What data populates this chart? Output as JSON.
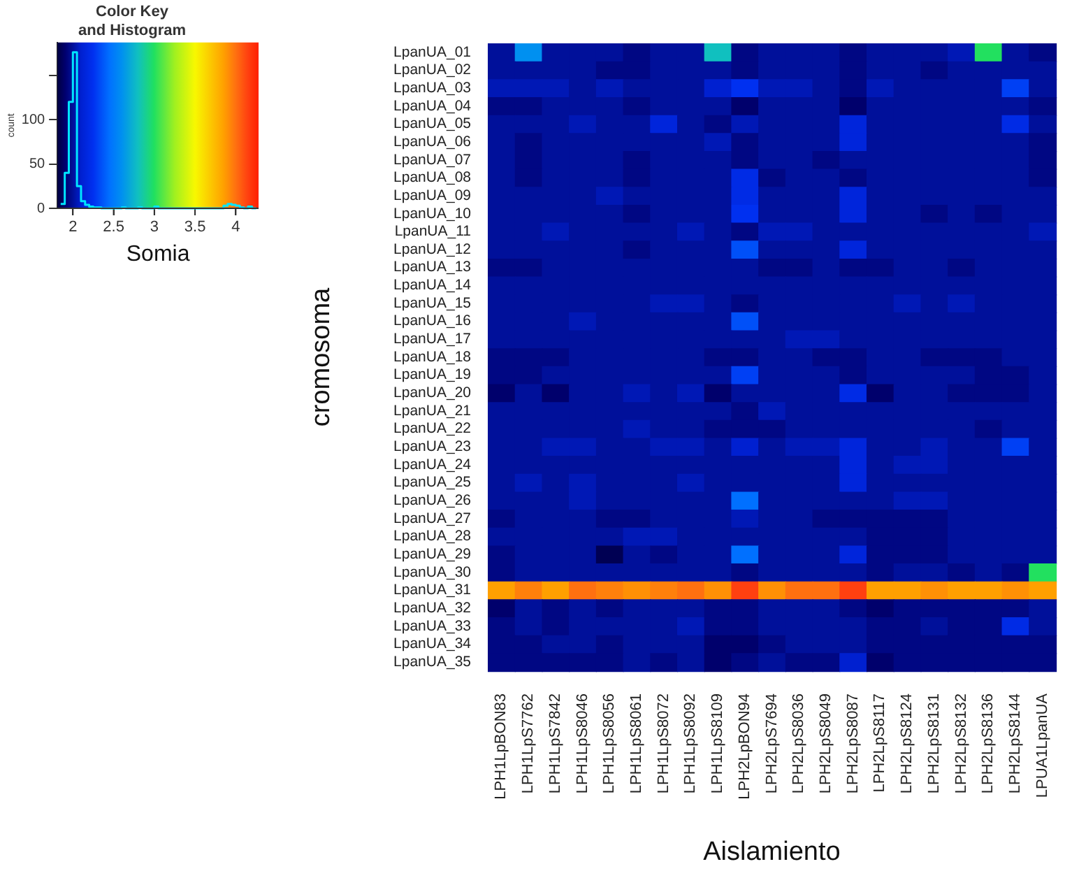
{
  "chart_data": [
    {
      "type": "histogram",
      "title": "Color Key\nand Histogram",
      "ylabel": "count",
      "color": "#00e5ff",
      "tick_labels": "y",
      "bins": [
        1.85,
        1.9,
        1.95,
        2.0,
        2.05,
        2.1,
        2.15,
        2.2,
        2.25,
        2.3,
        2.35,
        2.4,
        2.45,
        2.5,
        2.55,
        2.6,
        2.65,
        2.7,
        2.75,
        2.8,
        2.85,
        2.9,
        2.95,
        3.0,
        3.05,
        3.1,
        3.15,
        3.2,
        3.25,
        3.3,
        3.35,
        3.4,
        3.45,
        3.5,
        3.55,
        3.6,
        3.65,
        3.7,
        3.75,
        3.8,
        3.85,
        3.9,
        3.95,
        4.0,
        4.05,
        4.1,
        4.15,
        4.2,
        4.25
      ],
      "values": [
        5,
        40,
        120,
        176,
        25,
        8,
        4,
        2,
        1,
        1,
        0,
        0,
        0,
        0,
        0,
        1,
        0,
        0,
        0,
        1,
        0,
        0,
        0,
        2,
        0,
        0,
        0,
        0,
        0,
        0,
        0,
        0,
        0,
        0,
        0,
        0,
        0,
        0,
        0,
        0,
        3,
        5,
        4,
        3,
        1,
        0,
        2,
        0
      ],
      "xlim": [
        1.81,
        4.28
      ],
      "xticks": [
        2,
        2.5,
        3,
        3.5,
        4
      ],
      "ylim": [
        0,
        187
      ],
      "yticks": [
        0,
        50,
        100,
        {
          "value": 150,
          "label": null
        }
      ]
    },
    {
      "type": "heatmap",
      "xlabel": "Aislamiento",
      "ylabel": "cromosoma",
      "clabel": "Somia",
      "clim": [
        1.81,
        4.28
      ],
      "cticks": [
        2,
        2.5,
        3,
        3.5,
        4
      ],
      "categories": [
        "LPH1LpBON83",
        "LPH1LpS7762",
        "LPH1LpS7842",
        "LPH1LpS8046",
        "LPH1LpS8056",
        "LPH1LpS8061",
        "LPH1LpS8072",
        "LPH1LpS8092",
        "LPH1LpS8109",
        "LPH2LpBON94",
        "LPH2LpS7694",
        "LPH2LpS8036",
        "LPH2LpS8049",
        "LPH2LpS8087",
        "LPH2LpS8117",
        "LPH2LpS8124",
        "LPH2LpS8131",
        "LPH2LpS8132",
        "LPH2LpS8136",
        "LPH2LpS8144",
        "LPUA1LpanUA"
      ],
      "y_categories": [
        "LpanUA_01",
        "LpanUA_02",
        "LpanUA_03",
        "LpanUA_04",
        "LpanUA_05",
        "LpanUA_06",
        "LpanUA_07",
        "LpanUA_08",
        "LpanUA_09",
        "LpanUA_10",
        "LpanUA_11",
        "LpanUA_12",
        "LpanUA_13",
        "LpanUA_14",
        "LpanUA_15",
        "LpanUA_16",
        "LpanUA_17",
        "LpanUA_18",
        "LpanUA_19",
        "LpanUA_20",
        "LpanUA_21",
        "LpanUA_22",
        "LpanUA_23",
        "LpanUA_24",
        "LpanUA_25",
        "LpanUA_26",
        "LpanUA_27",
        "LpanUA_28",
        "LpanUA_29",
        "LpanUA_30",
        "LpanUA_31",
        "LpanUA_32",
        "LpanUA_33",
        "LpanUA_34",
        "LpanUA_35"
      ],
      "cells": [
        [
          2.0,
          2.6,
          2.0,
          2.0,
          2.0,
          1.95,
          2.0,
          2.0,
          2.8,
          1.95,
          2.0,
          2.0,
          2.0,
          1.95,
          2.0,
          2.0,
          2.0,
          2.05,
          3.0,
          2.0,
          1.95
        ],
        [
          2.0,
          2.0,
          2.0,
          2.0,
          1.95,
          1.95,
          2.0,
          2.0,
          2.0,
          1.95,
          2.0,
          2.0,
          2.0,
          1.95,
          2.0,
          2.0,
          1.95,
          2.0,
          2.0,
          2.0,
          2.0
        ],
        [
          2.05,
          2.05,
          2.05,
          2.0,
          2.05,
          2.0,
          2.0,
          2.0,
          2.1,
          2.25,
          2.05,
          2.05,
          2.0,
          1.95,
          2.05,
          2.0,
          2.0,
          2.0,
          2.0,
          2.3,
          2.0
        ],
        [
          1.95,
          1.95,
          2.0,
          2.0,
          2.0,
          1.95,
          2.0,
          2.0,
          2.0,
          1.9,
          2.0,
          2.0,
          2.0,
          1.9,
          2.0,
          2.0,
          2.0,
          2.0,
          2.0,
          2.0,
          1.95
        ],
        [
          2.0,
          2.0,
          2.0,
          2.05,
          2.0,
          2.0,
          2.15,
          2.0,
          1.95,
          2.05,
          2.0,
          2.0,
          2.0,
          2.15,
          2.0,
          2.0,
          2.0,
          2.0,
          2.0,
          2.2,
          2.0
        ],
        [
          2.0,
          1.95,
          2.0,
          2.0,
          2.0,
          2.0,
          2.0,
          2.0,
          2.05,
          1.95,
          2.0,
          2.0,
          2.0,
          2.15,
          2.0,
          2.0,
          2.0,
          2.0,
          2.0,
          2.0,
          1.95
        ],
        [
          2.0,
          1.95,
          2.0,
          2.0,
          2.0,
          1.95,
          2.0,
          2.0,
          2.0,
          1.95,
          2.0,
          2.0,
          1.95,
          2.0,
          2.0,
          2.0,
          2.0,
          2.0,
          2.0,
          2.0,
          1.95
        ],
        [
          2.0,
          1.95,
          2.0,
          2.0,
          2.0,
          1.95,
          2.0,
          2.0,
          2.0,
          2.2,
          1.95,
          2.0,
          2.0,
          1.95,
          2.0,
          2.0,
          2.0,
          2.0,
          2.0,
          2.0,
          1.95
        ],
        [
          2.0,
          2.0,
          2.0,
          2.0,
          2.05,
          2.0,
          2.0,
          2.0,
          2.0,
          2.2,
          2.0,
          2.0,
          2.0,
          2.15,
          2.0,
          2.0,
          2.0,
          2.0,
          2.0,
          2.0,
          2.0
        ],
        [
          2.0,
          2.0,
          2.0,
          2.0,
          2.0,
          1.95,
          2.0,
          2.0,
          2.0,
          2.25,
          2.0,
          2.0,
          2.0,
          2.15,
          2.0,
          2.0,
          1.95,
          2.0,
          1.95,
          2.0,
          2.0
        ],
        [
          2.0,
          2.0,
          2.05,
          2.0,
          2.0,
          2.0,
          2.0,
          2.05,
          2.0,
          1.95,
          2.05,
          2.05,
          2.0,
          2.0,
          2.0,
          2.0,
          2.0,
          2.0,
          2.0,
          2.0,
          2.05
        ],
        [
          2.0,
          2.0,
          2.0,
          2.0,
          2.0,
          1.95,
          2.0,
          2.0,
          2.0,
          2.35,
          2.0,
          2.0,
          2.0,
          2.15,
          2.0,
          2.0,
          2.0,
          2.0,
          2.0,
          2.0,
          2.0
        ],
        [
          1.95,
          1.95,
          2.0,
          2.0,
          2.0,
          2.0,
          2.0,
          2.0,
          2.0,
          2.0,
          1.95,
          1.95,
          2.0,
          1.95,
          1.95,
          2.0,
          2.0,
          1.95,
          2.0,
          2.0,
          2.0
        ],
        [
          2.0,
          2.0,
          2.0,
          2.0,
          2.0,
          2.0,
          2.0,
          2.0,
          2.0,
          2.0,
          2.0,
          2.0,
          2.0,
          2.0,
          2.0,
          2.0,
          2.0,
          2.0,
          2.0,
          2.0,
          2.0
        ],
        [
          2.0,
          2.0,
          2.0,
          2.0,
          2.0,
          2.0,
          2.05,
          2.05,
          2.0,
          1.95,
          2.0,
          2.0,
          2.0,
          2.0,
          2.0,
          2.05,
          2.0,
          2.05,
          2.0,
          2.0,
          2.0
        ],
        [
          2.0,
          2.0,
          2.0,
          2.05,
          2.0,
          2.0,
          2.0,
          2.0,
          2.0,
          2.35,
          2.0,
          2.0,
          2.0,
          2.0,
          2.0,
          2.0,
          2.0,
          2.0,
          2.0,
          2.0,
          2.0
        ],
        [
          2.0,
          2.0,
          2.0,
          2.0,
          2.0,
          2.0,
          2.0,
          2.0,
          2.0,
          2.0,
          2.0,
          2.05,
          2.05,
          2.0,
          2.0,
          2.0,
          2.0,
          2.0,
          2.0,
          2.0,
          2.0
        ],
        [
          1.95,
          1.95,
          1.95,
          2.0,
          2.0,
          2.0,
          2.0,
          2.0,
          1.95,
          1.95,
          2.0,
          2.0,
          1.95,
          1.95,
          2.0,
          2.0,
          1.95,
          1.95,
          1.95,
          2.0,
          2.0
        ],
        [
          1.95,
          1.95,
          2.0,
          2.0,
          2.0,
          2.0,
          2.0,
          2.0,
          2.0,
          2.3,
          2.0,
          2.0,
          2.0,
          1.95,
          2.0,
          2.0,
          2.0,
          2.0,
          1.95,
          1.95,
          2.0
        ],
        [
          1.9,
          2.0,
          1.9,
          2.0,
          2.0,
          2.05,
          2.0,
          2.05,
          1.9,
          2.0,
          2.0,
          2.0,
          2.0,
          2.2,
          1.9,
          2.0,
          2.0,
          1.95,
          1.95,
          1.95,
          2.0
        ],
        [
          2.0,
          2.0,
          2.0,
          2.0,
          2.0,
          2.0,
          2.0,
          2.0,
          2.0,
          1.95,
          2.05,
          2.0,
          2.0,
          2.0,
          2.0,
          2.0,
          2.0,
          2.0,
          2.0,
          2.0,
          2.0
        ],
        [
          2.0,
          2.0,
          2.0,
          2.0,
          2.0,
          2.05,
          2.0,
          2.0,
          1.95,
          1.95,
          1.95,
          2.0,
          2.0,
          2.0,
          2.0,
          2.0,
          2.0,
          2.0,
          1.95,
          2.0,
          2.0
        ],
        [
          2.0,
          2.0,
          2.05,
          2.05,
          2.0,
          2.0,
          2.05,
          2.05,
          2.0,
          2.1,
          2.0,
          2.05,
          2.05,
          2.15,
          2.0,
          2.0,
          2.05,
          2.0,
          2.0,
          2.3,
          2.0
        ],
        [
          2.0,
          2.0,
          2.0,
          2.0,
          2.0,
          2.0,
          2.0,
          2.0,
          2.0,
          2.0,
          2.0,
          2.0,
          2.0,
          2.15,
          2.0,
          2.05,
          2.05,
          2.0,
          2.0,
          2.0,
          2.0
        ],
        [
          2.0,
          2.05,
          2.0,
          2.05,
          2.0,
          2.0,
          2.0,
          2.05,
          2.0,
          2.0,
          2.0,
          2.0,
          2.0,
          2.15,
          2.0,
          2.0,
          2.0,
          2.0,
          2.0,
          2.0,
          2.0
        ],
        [
          2.0,
          2.0,
          2.0,
          2.05,
          2.0,
          2.0,
          2.0,
          2.0,
          2.0,
          2.45,
          2.0,
          2.0,
          2.0,
          2.0,
          2.0,
          2.05,
          2.05,
          2.0,
          2.0,
          2.0,
          2.0
        ],
        [
          1.95,
          2.0,
          2.0,
          2.0,
          1.95,
          1.95,
          2.0,
          2.0,
          2.0,
          2.05,
          2.0,
          2.0,
          1.95,
          1.95,
          1.95,
          1.95,
          1.95,
          2.0,
          2.0,
          2.0,
          2.0
        ],
        [
          2.0,
          2.0,
          2.0,
          2.0,
          2.0,
          2.05,
          2.05,
          2.0,
          2.0,
          2.0,
          2.0,
          2.0,
          2.0,
          2.0,
          1.95,
          1.95,
          1.95,
          2.0,
          2.0,
          2.0,
          2.0
        ],
        [
          1.95,
          2.0,
          2.0,
          2.0,
          1.85,
          2.0,
          1.95,
          2.0,
          2.0,
          2.45,
          2.0,
          2.0,
          2.0,
          2.15,
          1.95,
          1.95,
          1.95,
          2.0,
          2.0,
          2.0,
          2.0
        ],
        [
          1.95,
          2.0,
          2.0,
          2.0,
          2.0,
          2.0,
          2.0,
          2.0,
          2.0,
          1.95,
          2.0,
          2.0,
          2.0,
          2.0,
          1.95,
          2.0,
          2.0,
          1.95,
          2.0,
          1.95,
          3.0
        ],
        [
          3.85,
          3.95,
          3.85,
          4.0,
          3.95,
          3.9,
          3.95,
          4.0,
          3.9,
          4.15,
          3.9,
          4.0,
          4.0,
          4.15,
          3.85,
          3.85,
          3.9,
          3.85,
          3.85,
          3.9,
          3.85
        ],
        [
          1.9,
          2.0,
          1.95,
          2.0,
          1.95,
          2.0,
          2.0,
          2.0,
          1.95,
          1.95,
          2.0,
          2.0,
          2.0,
          1.95,
          1.9,
          1.95,
          1.95,
          1.95,
          1.95,
          1.95,
          2.0
        ],
        [
          1.95,
          2.0,
          1.95,
          2.0,
          2.0,
          2.0,
          2.0,
          2.05,
          1.95,
          1.95,
          2.0,
          2.0,
          2.0,
          2.0,
          1.95,
          1.95,
          2.0,
          1.95,
          1.95,
          2.2,
          2.0
        ],
        [
          1.95,
          1.95,
          2.0,
          2.0,
          1.95,
          2.0,
          2.0,
          2.0,
          1.9,
          1.9,
          1.95,
          2.0,
          2.0,
          2.0,
          1.95,
          1.95,
          1.95,
          1.95,
          1.95,
          1.95,
          1.95
        ],
        [
          1.95,
          1.95,
          1.95,
          1.95,
          1.95,
          2.0,
          1.95,
          2.0,
          1.9,
          1.95,
          2.0,
          1.95,
          1.95,
          2.1,
          1.9,
          1.95,
          1.95,
          1.95,
          1.95,
          1.95,
          1.95
        ]
      ]
    }
  ]
}
